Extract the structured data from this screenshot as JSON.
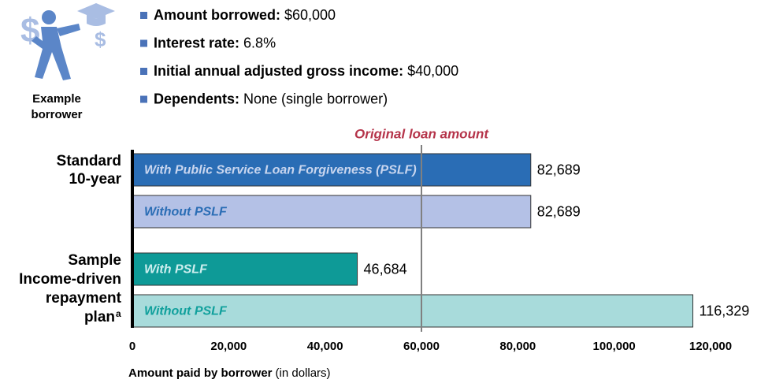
{
  "header": {
    "icon_label_lines": [
      "Example",
      "borrower"
    ],
    "bullets": [
      {
        "label": "Amount borrowed:",
        "value": "$60,000"
      },
      {
        "label": "Interest rate:",
        "value": "6.8%"
      },
      {
        "label": "Initial annual adjusted gross income:",
        "value": "$40,000"
      },
      {
        "label": "Dependents:",
        "value": "None (single borrower)"
      }
    ],
    "bullet_color": "#4a72b8"
  },
  "chart_data": {
    "type": "bar",
    "orientation": "horizontal",
    "groups": [
      {
        "label_lines": [
          "Standard",
          "10-year"
        ],
        "categories": [
          "With Public Service Loan Forgiveness (PSLF)",
          "Without PSLF"
        ],
        "values": [
          82689,
          82689
        ],
        "value_labels": [
          "82,689",
          "82,689"
        ],
        "colors": [
          "#2a6db5",
          "#b4c1e6"
        ],
        "label_colors": [
          "#c9d6ef",
          "#2a6db5"
        ]
      },
      {
        "label_lines": [
          "Sample",
          "Income-driven",
          "repayment",
          "plan"
        ],
        "footnote_marker": "a",
        "categories": [
          "With PSLF",
          "Without PSLF"
        ],
        "values": [
          46684,
          116329
        ],
        "value_labels": [
          "46,684",
          "116,329"
        ],
        "colors": [
          "#0e9a97",
          "#a8dbdb"
        ],
        "label_colors": [
          "#cdeeee",
          "#10a09c"
        ]
      }
    ],
    "reference_line": {
      "value": 60000,
      "label": "Original loan amount",
      "label_color": "#b5344a",
      "color": "#808080"
    },
    "xlim": [
      0,
      120000
    ],
    "xticks": [
      0,
      {
        "value": 20000,
        "label": "20,000"
      },
      {
        "value": 40000,
        "label": "40,000"
      },
      {
        "value": 60000,
        "label": "60,000"
      },
      {
        "value": 80000,
        "label": "80,000"
      },
      {
        "value": 100000,
        "label": "100,000"
      },
      {
        "value": 120000,
        "label": "120,000"
      }
    ],
    "xlabel": {
      "bold": "Amount paid by borrower",
      "normal": "(in dollars)"
    }
  }
}
